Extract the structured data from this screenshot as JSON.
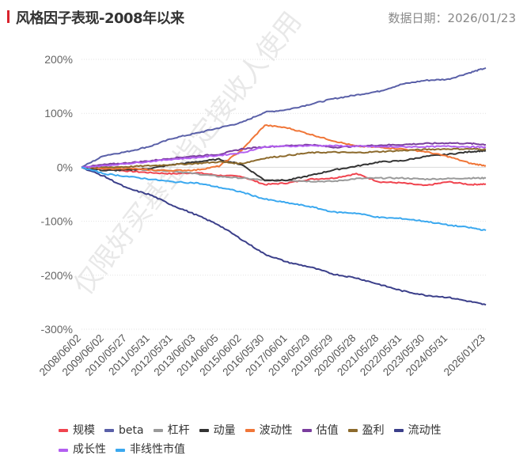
{
  "header": {
    "title": "风格因子表现-2008年以来",
    "date": "数据日期：2026/01/23"
  },
  "watermark": "仅限好买基金指定接收人使用",
  "chart_data": {
    "type": "line",
    "title": "风格因子表现-2008年以来",
    "xlabel": "",
    "ylabel": "",
    "ylim": [
      -300,
      200
    ],
    "yticks": [
      200,
      100,
      0,
      -100,
      -200,
      -300
    ],
    "ytick_labels": [
      "200%",
      "100%",
      "0%",
      "-100%",
      "-200%",
      "-300%"
    ],
    "xtick_labels": [
      "2008/06/02",
      "2009/06/02",
      "2010/05/27",
      "2011/05/31",
      "2012/05/31",
      "2013/06/03",
      "2014/06/05",
      "2015/06/02",
      "2016/05/30",
      "2017/06/01",
      "2018/05/29",
      "2019/05/29",
      "2020/05/28",
      "2021/05/28",
      "2022/05/31",
      "2023/05/30",
      "2024/05/31",
      "2026/01/23"
    ],
    "x_years_since_start": [
      0,
      1,
      2,
      3,
      4,
      5,
      6,
      7,
      8,
      9,
      10,
      11,
      12,
      13,
      14,
      15,
      16,
      17,
      17.65
    ],
    "grid": true,
    "legend_position": "bottom",
    "series": [
      {
        "name": "规模",
        "color": "#f0444f",
        "values": [
          0,
          -3,
          -7,
          -10,
          -12,
          -10,
          -15,
          -17,
          -32,
          -29,
          -22,
          -20,
          -12,
          -27,
          -29,
          -34,
          -27,
          -32,
          -31
        ]
      },
      {
        "name": "beta",
        "color": "#5a60a8",
        "values": [
          0,
          22,
          29,
          39,
          54,
          63,
          73,
          83,
          102,
          107,
          117,
          127,
          134,
          141,
          154,
          161,
          163,
          176,
          184
        ]
      },
      {
        "name": "杠杆",
        "color": "#9a9a9a",
        "values": [
          0,
          -2,
          -3,
          -5,
          -7,
          -12,
          -17,
          -20,
          -24,
          -24,
          -26,
          -26,
          -21,
          -20,
          -20,
          -22,
          -21,
          -20,
          -20
        ]
      },
      {
        "name": "动量",
        "color": "#333333",
        "values": [
          0,
          -6,
          -5,
          -2,
          5,
          10,
          15,
          5,
          -24,
          -24,
          -15,
          -5,
          2,
          10,
          12,
          20,
          24,
          29,
          31
        ]
      },
      {
        "name": "波动性",
        "color": "#f07638",
        "values": [
          0,
          -3,
          -2,
          -5,
          -6,
          -5,
          2,
          32,
          78,
          73,
          61,
          49,
          39,
          37,
          34,
          29,
          20,
          7,
          3
        ]
      },
      {
        "name": "估值",
        "color": "#7a3d9e",
        "values": [
          0,
          5,
          8,
          12,
          17,
          21,
          24,
          34,
          38,
          40,
          42,
          37,
          39,
          41,
          42,
          44,
          45,
          44,
          42
        ]
      },
      {
        "name": "盈利",
        "color": "#8c6a2c",
        "values": [
          0,
          0,
          1,
          3,
          5,
          7,
          10,
          7,
          17,
          22,
          27,
          28,
          27,
          29,
          31,
          33,
          34,
          34,
          33
        ]
      },
      {
        "name": "流动性",
        "color": "#3b3f8a",
        "values": [
          0,
          -17,
          -39,
          -51,
          -71,
          -88,
          -107,
          -134,
          -161,
          -176,
          -185,
          -198,
          -205,
          -217,
          -229,
          -237,
          -241,
          -249,
          -255
        ]
      },
      {
        "name": "成长性",
        "color": "#b35ff0",
        "values": [
          0,
          3,
          7,
          11,
          15,
          18,
          22,
          27,
          38,
          39,
          40,
          40,
          39,
          38,
          38,
          38,
          39,
          38,
          37
        ]
      },
      {
        "name": "非线性市值",
        "color": "#3aa8ef",
        "values": [
          0,
          -12,
          -17,
          -22,
          -27,
          -29,
          -37,
          -46,
          -59,
          -66,
          -73,
          -83,
          -85,
          -93,
          -95,
          -100,
          -107,
          -112,
          -117
        ]
      }
    ]
  }
}
